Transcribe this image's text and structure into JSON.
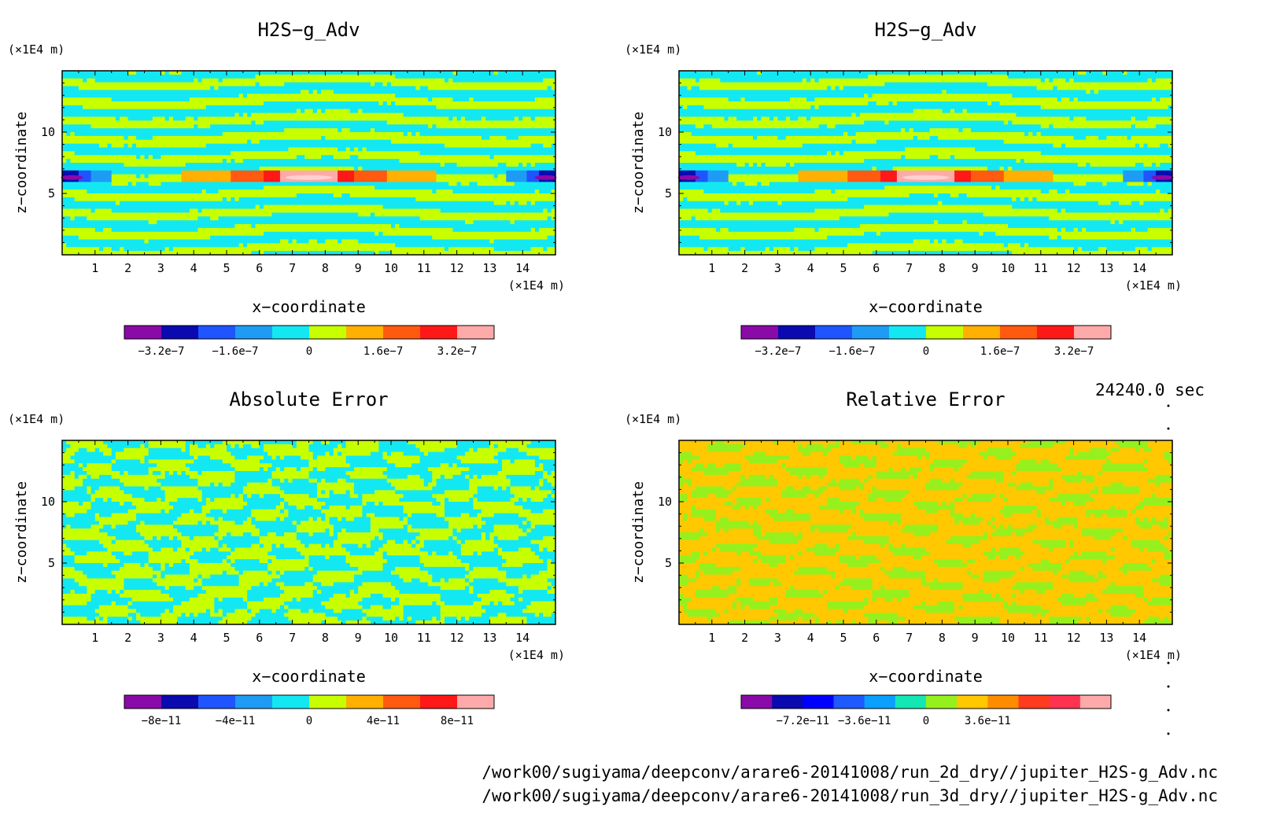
{
  "panels": [
    {
      "title": "H2S−g_Adv",
      "palette": [
        "#8a0aa8",
        "#0a0ab0",
        "#1f55ff",
        "#1e9cf5",
        "#13e8f2",
        "#c8ff00",
        "#ffb000",
        "#ff5a10",
        "#ff1818",
        "#ffaaaa"
      ],
      "colorbar_ticks": [
        "−3.2e−7",
        "−1.6e−7",
        "0",
        "1.6e−7",
        "3.2e−7"
      ]
    },
    {
      "title": "H2S−g_Adv",
      "palette": [
        "#8a0aa8",
        "#0a0ab0",
        "#1f55ff",
        "#1e9cf5",
        "#13e8f2",
        "#c8ff00",
        "#ffb000",
        "#ff5a10",
        "#ff1818",
        "#ffaaaa"
      ],
      "colorbar_ticks": [
        "−3.2e−7",
        "−1.6e−7",
        "0",
        "1.6e−7",
        "3.2e−7"
      ]
    },
    {
      "title": "Absolute Error",
      "palette": [
        "#8a0aa8",
        "#0a0ab0",
        "#1f55ff",
        "#1e9cf5",
        "#13e8f2",
        "#c8ff00",
        "#ffb000",
        "#ff5a10",
        "#ff1818",
        "#ffaaaa"
      ],
      "colorbar_ticks": [
        "−8e−11",
        "−4e−11",
        "0",
        "4e−11",
        "8e−11"
      ]
    },
    {
      "title": "Relative Error",
      "palette": [
        "#8a0aa8",
        "#0a0ab0",
        "#0000ff",
        "#1e5aff",
        "#0aa0ff",
        "#13e8b4",
        "#96f01e",
        "#ffc800",
        "#ff8c00",
        "#ff3c1e",
        "#ff3250",
        "#ffaaaa"
      ],
      "colorbar_ticks": [
        "−7.2e−11",
        "−3.6e−11",
        "0",
        "3.6e−11"
      ]
    }
  ],
  "common": {
    "unit_label": "(×1E4 m)",
    "xlabel": "x−coordinate",
    "ylabel": "z−coordinate",
    "x_ticks": [
      "1",
      "2",
      "3",
      "4",
      "5",
      "6",
      "7",
      "8",
      "9",
      "10",
      "11",
      "12",
      "13",
      "14"
    ],
    "y_ticks": [
      "5",
      "10"
    ]
  },
  "time_label": "24240.0 sec",
  "files": [
    "/work00/sugiyama/deepconv/arare6-20141008/run_2d_dry//jupiter_H2S-g_Adv.nc",
    "/work00/sugiyama/deepconv/arare6-20141008/run_3d_dry//jupiter_H2S-g_Adv.nc"
  ],
  "chart_data": [
    {
      "type": "heatmap",
      "title": "H2S−g_Adv",
      "xlabel": "x−coordinate",
      "ylabel": "z−coordinate",
      "x_unit": "×1E4 m",
      "y_unit": "×1E4 m",
      "xlim": [
        0,
        15
      ],
      "ylim": [
        0,
        15
      ],
      "x_ticks": [
        1,
        2,
        3,
        4,
        5,
        6,
        7,
        8,
        9,
        10,
        11,
        12,
        13,
        14
      ],
      "y_ticks": [
        5,
        10
      ],
      "color_levels": [
        -4e-07,
        -3.2e-07,
        -2.4e-07,
        -1.6e-07,
        -8e-08,
        0,
        8e-08,
        1.6e-07,
        2.4e-07,
        3.2e-07,
        4e-07
      ],
      "features": [
        {
          "kind": "positive_max",
          "x": 7.5,
          "z": 6.3,
          "value": 4e-07
        },
        {
          "kind": "negative_min",
          "x": 0.3,
          "z": 6.3,
          "value": -3.2e-07
        },
        {
          "kind": "negative_min",
          "x": 14.7,
          "z": 6.3,
          "value": -3.2e-07
        }
      ]
    },
    {
      "type": "heatmap",
      "title": "H2S−g_Adv",
      "xlabel": "x−coordinate",
      "ylabel": "z−coordinate",
      "x_unit": "×1E4 m",
      "y_unit": "×1E4 m",
      "xlim": [
        0,
        15
      ],
      "ylim": [
        0,
        15
      ],
      "x_ticks": [
        1,
        2,
        3,
        4,
        5,
        6,
        7,
        8,
        9,
        10,
        11,
        12,
        13,
        14
      ],
      "y_ticks": [
        5,
        10
      ],
      "color_levels": [
        -4e-07,
        -3.2e-07,
        -2.4e-07,
        -1.6e-07,
        -8e-08,
        0,
        8e-08,
        1.6e-07,
        2.4e-07,
        3.2e-07,
        4e-07
      ],
      "features": [
        {
          "kind": "positive_max",
          "x": 7.5,
          "z": 6.3,
          "value": 4e-07
        },
        {
          "kind": "negative_min",
          "x": 0.3,
          "z": 6.3,
          "value": -3.2e-07
        },
        {
          "kind": "negative_min",
          "x": 14.7,
          "z": 6.3,
          "value": -3.2e-07
        }
      ]
    },
    {
      "type": "heatmap",
      "title": "Absolute Error",
      "xlabel": "x−coordinate",
      "ylabel": "z−coordinate",
      "x_unit": "×1E4 m",
      "y_unit": "×1E4 m",
      "xlim": [
        0,
        15
      ],
      "ylim": [
        0,
        15
      ],
      "x_ticks": [
        1,
        2,
        3,
        4,
        5,
        6,
        7,
        8,
        9,
        10,
        11,
        12,
        13,
        14
      ],
      "y_ticks": [
        5,
        10
      ],
      "color_levels": [
        -1e-10,
        -8e-11,
        -6e-11,
        -4e-11,
        -2e-11,
        0,
        2e-11,
        4e-11,
        6e-11,
        8e-11,
        1e-10
      ],
      "dominant_values": [
        -2e-11,
        2e-11
      ]
    },
    {
      "type": "heatmap",
      "title": "Relative Error",
      "xlabel": "x−coordinate",
      "ylabel": "z−coordinate",
      "x_unit": "×1E4 m",
      "y_unit": "×1E4 m",
      "xlim": [
        0,
        15
      ],
      "ylim": [
        0,
        15
      ],
      "x_ticks": [
        1,
        2,
        3,
        4,
        5,
        6,
        7,
        8,
        9,
        10,
        11,
        12,
        13,
        14
      ],
      "y_ticks": [
        5,
        10
      ],
      "color_levels": [
        -1.08e-10,
        -9e-11,
        -7.2e-11,
        -5.4e-11,
        -3.6e-11,
        -1.8e-11,
        0,
        1.8e-11,
        3.6e-11,
        5.4e-11,
        7.2e-11,
        9e-11,
        1.08e-10
      ],
      "dominant_values": [
        0,
        1.8e-11
      ]
    }
  ]
}
